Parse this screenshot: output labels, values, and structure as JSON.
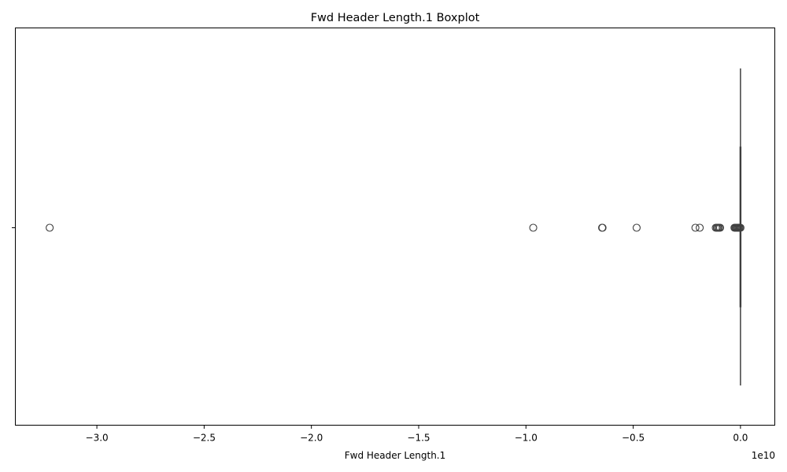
{
  "chart_data": {
    "type": "box",
    "title": "Fwd Header Length.1 Boxplot",
    "xlabel": "Fwd Header Length.1",
    "ylabel": "",
    "offset_label": "1e10",
    "x_ticks": [
      -3.0,
      -2.5,
      -2.0,
      -1.5,
      -1.0,
      -0.5,
      0.0
    ],
    "x_tick_labels": [
      "−3.0",
      "−2.5",
      "−2.0",
      "−1.5",
      "−1.0",
      "−0.5",
      "0.0"
    ],
    "xlim": [
      -3.38,
      0.16
    ],
    "scale_multiplier": 10000000000,
    "box": {
      "q1": 0.0,
      "median": 0.0,
      "q3": 0.0,
      "whisker_low": 0.0,
      "whisker_high": 0.0
    },
    "outliers": [
      -3.22,
      -0.966,
      -0.645,
      -0.643,
      -0.484,
      -0.21,
      -0.19,
      -0.115,
      -0.11,
      -0.105,
      -0.1,
      -0.095,
      -0.028,
      -0.024,
      -0.02,
      -0.016,
      -0.012,
      -0.008,
      -0.004,
      0.0
    ],
    "grid": false
  },
  "colors": {
    "box_line": "#3f3f3f",
    "marker_edge": "#3f3f3f",
    "axes": "#000000"
  }
}
